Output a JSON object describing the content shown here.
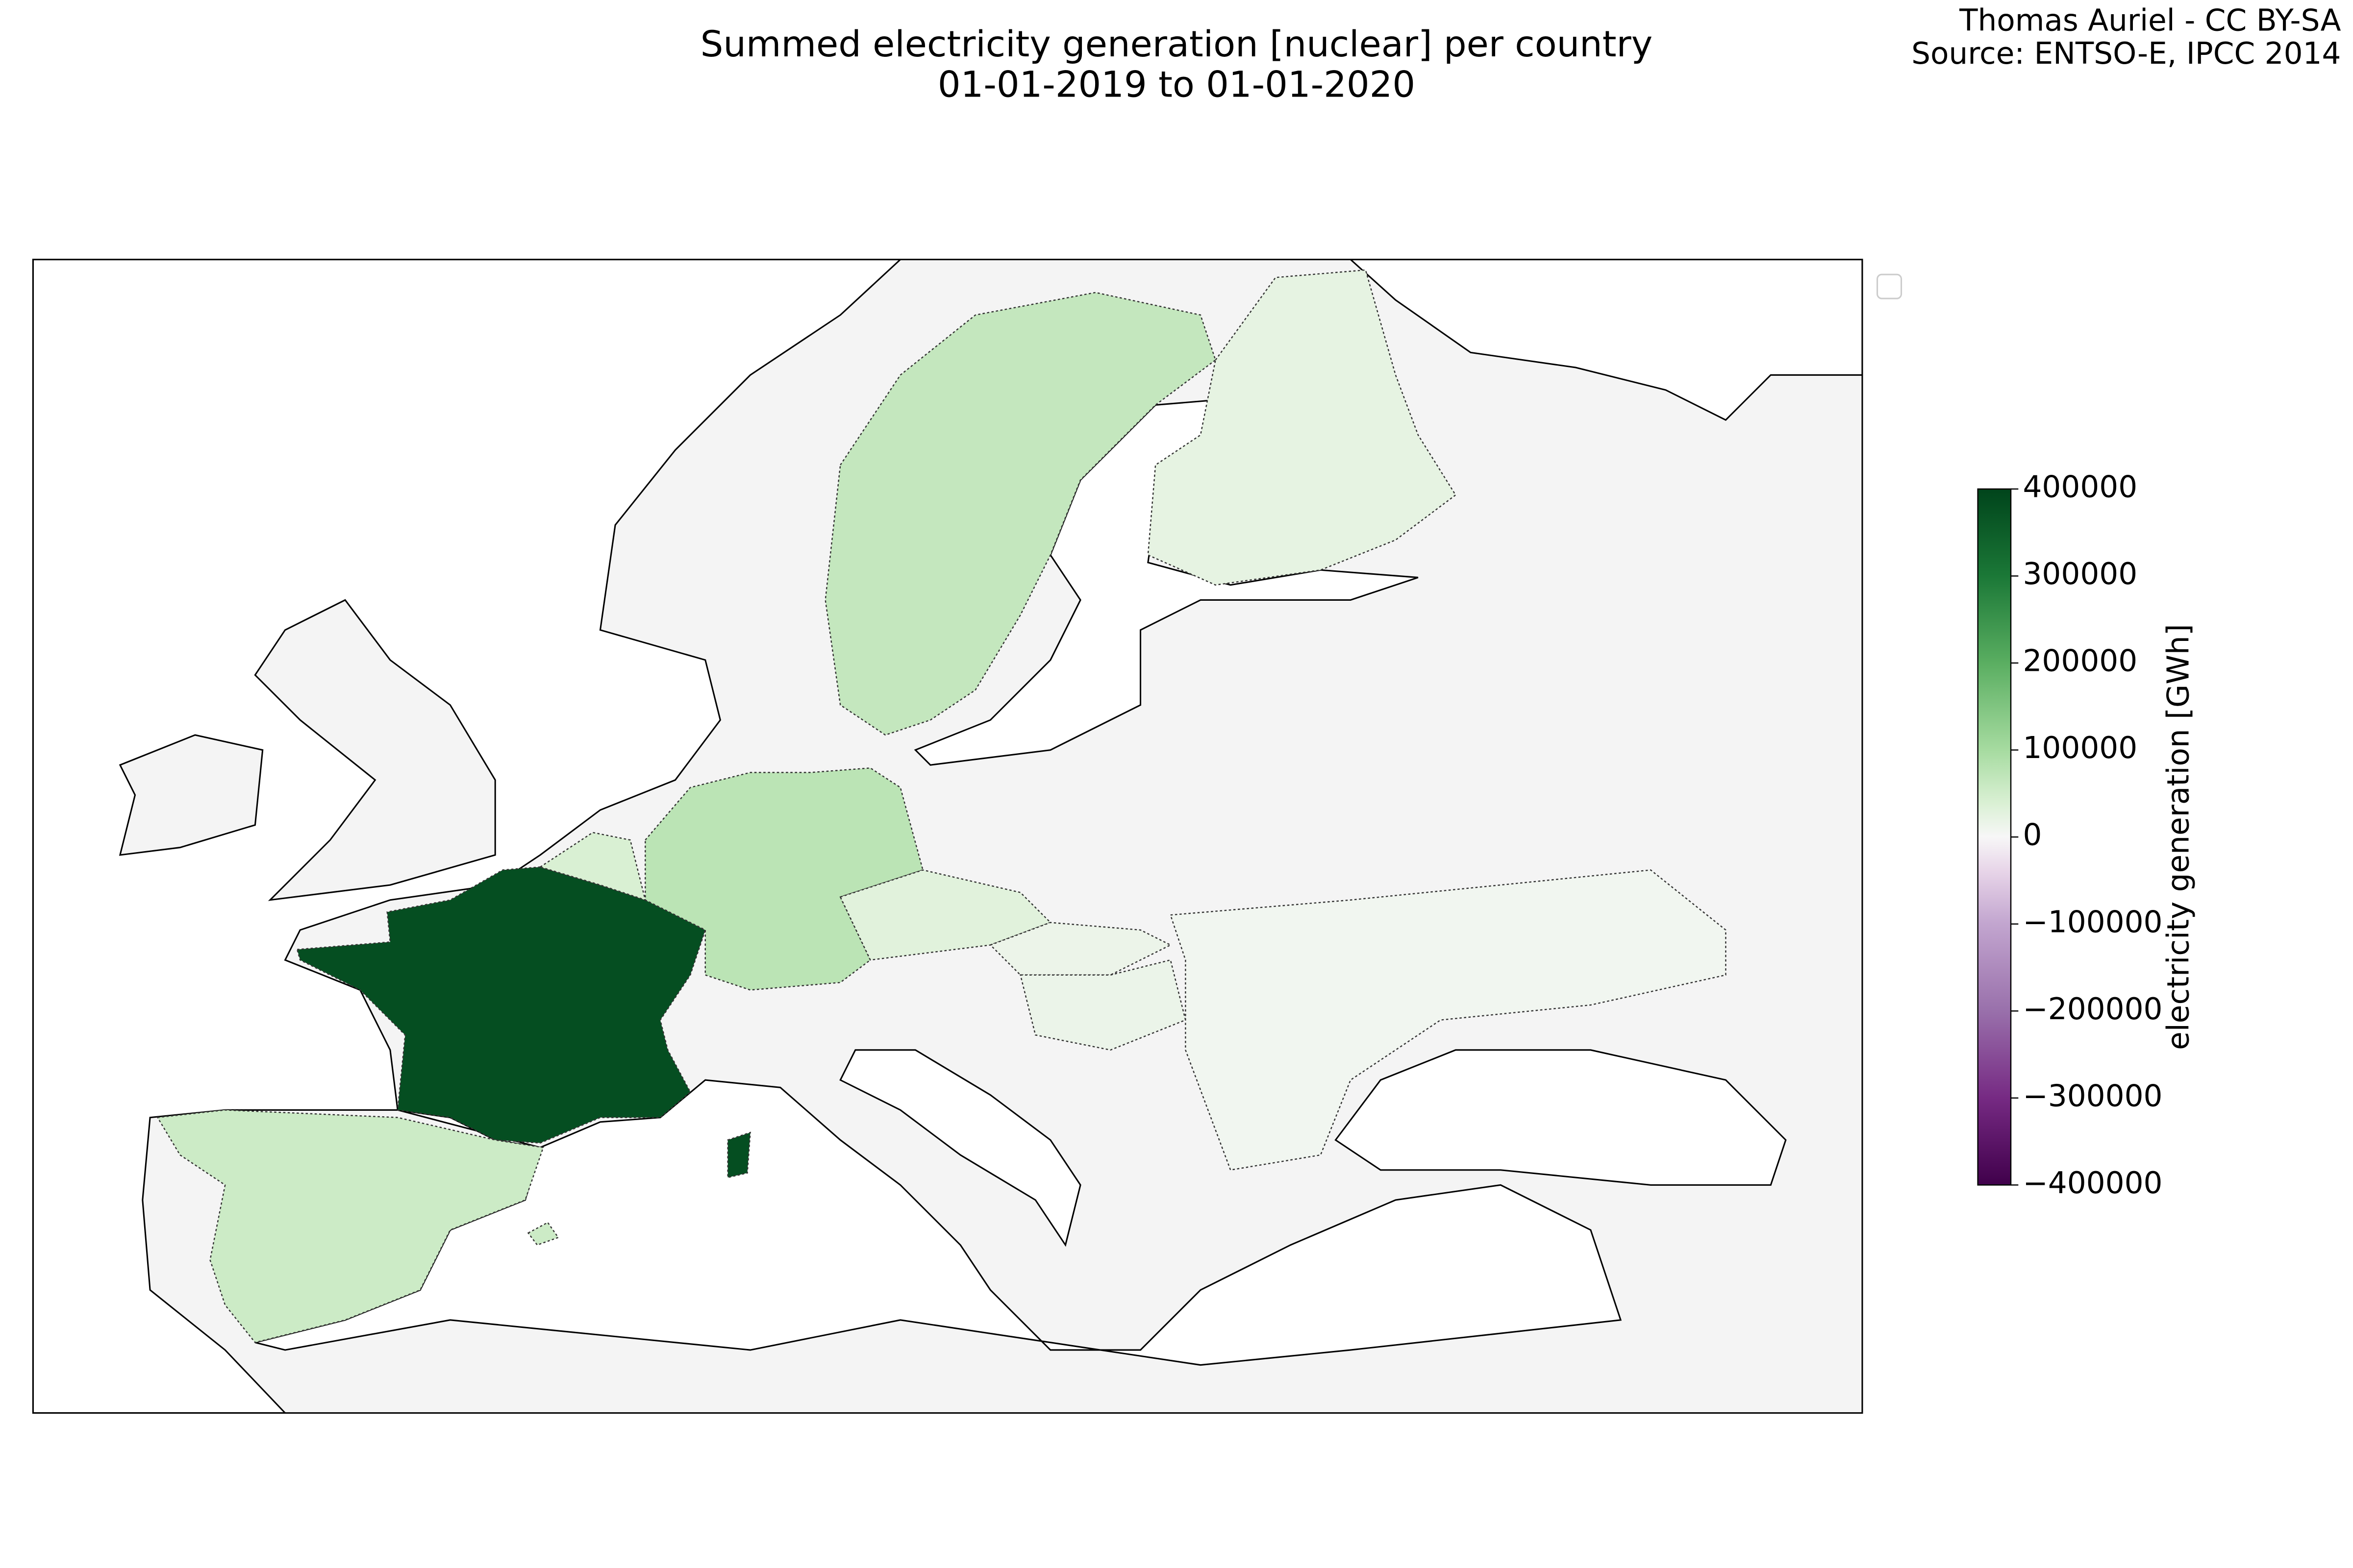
{
  "chart_data": {
    "type": "choropleth",
    "title": "Summed electricity generation [nuclear] per country",
    "subtitle": "01-01-2019 to 01-01-2020",
    "attribution": [
      "Thomas Auriel - CC BY-SA",
      "Source: ENTSO-E, IPCC 2014"
    ],
    "colorbar_label": "electricity generation [GWh]",
    "colormap": "PRGn",
    "clim": [
      -400000,
      400000
    ],
    "cticks": [
      400000,
      300000,
      200000,
      100000,
      0,
      {
        "value": -100000,
        "label": "−100000"
      },
      {
        "value": -200000,
        "label": "−200000"
      },
      {
        "value": -300000,
        "label": "−300000"
      },
      {
        "value": -400000,
        "label": "−400000"
      }
    ],
    "values": [
      380000,
      75000,
      65000,
      55000,
      23000,
      40000,
      30000,
      15000,
      16000,
      8000
    ]
  }
}
